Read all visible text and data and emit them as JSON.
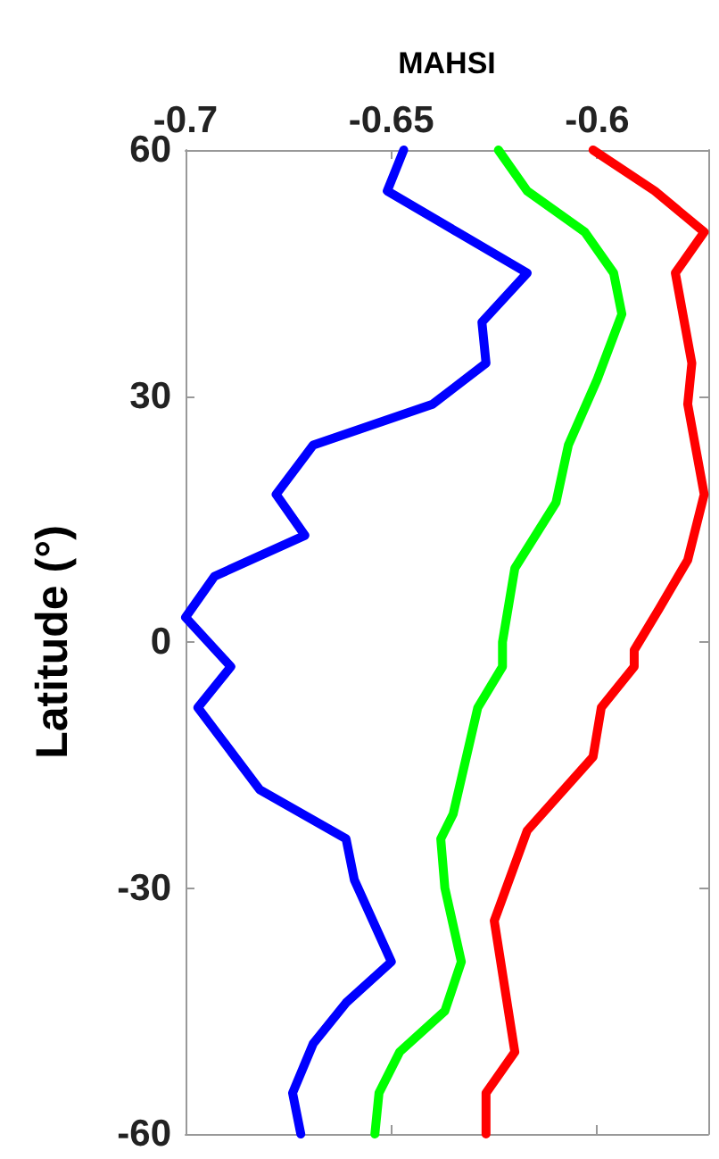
{
  "chart_data": {
    "type": "line",
    "xlabel": "MAHSI",
    "ylabel": "Latitude (°)",
    "xlim": [
      -0.7,
      -0.573
    ],
    "xticks": [
      -0.7,
      -0.65,
      -0.6
    ],
    "ylim": [
      -60,
      60
    ],
    "yticks": [
      -60,
      -30,
      0,
      30,
      60
    ],
    "grid": false,
    "marker": "none",
    "line_style": "solid",
    "series": [
      {
        "color": "#0000ff",
        "x": [
          -0.647,
          -0.651,
          -0.617,
          -0.628,
          -0.627,
          -0.64,
          -0.669,
          -0.678,
          -0.671,
          -0.693,
          -0.7,
          -0.689,
          -0.697,
          -0.682,
          -0.661,
          -0.659,
          -0.65,
          -0.661,
          -0.669,
          -0.674,
          -0.672
        ],
        "values": [
          60,
          55,
          45,
          39,
          34,
          29,
          24,
          18,
          13,
          8,
          3,
          -3,
          -8,
          -18,
          -24,
          -29,
          -39,
          -44,
          -49,
          -55,
          -60
        ]
      },
      {
        "color": "#00ff00",
        "x": [
          -0.624,
          -0.617,
          -0.603,
          -0.596,
          -0.594,
          -0.6,
          -0.607,
          -0.61,
          -0.62,
          -0.623,
          -0.623,
          -0.629,
          -0.635,
          -0.638,
          -0.637,
          -0.633,
          -0.637,
          -0.648,
          -0.653,
          -0.654
        ],
        "values": [
          60,
          55,
          50,
          45,
          40,
          32,
          24,
          17,
          9,
          0,
          -3,
          -8,
          -21,
          -24,
          -30,
          -39,
          -45,
          -50,
          -55,
          -60
        ]
      },
      {
        "color": "#ff0000",
        "x": [
          -0.601,
          -0.586,
          -0.574,
          -0.581,
          -0.577,
          -0.578,
          -0.574,
          -0.578,
          -0.585,
          -0.591,
          -0.591,
          -0.599,
          -0.601,
          -0.617,
          -0.625,
          -0.62,
          -0.627,
          -0.627
        ],
        "values": [
          60,
          55,
          50,
          45,
          34,
          29,
          18,
          10,
          4,
          -1,
          -3,
          -8,
          -14,
          -23,
          -34,
          -50,
          -55,
          -60
        ]
      }
    ]
  }
}
